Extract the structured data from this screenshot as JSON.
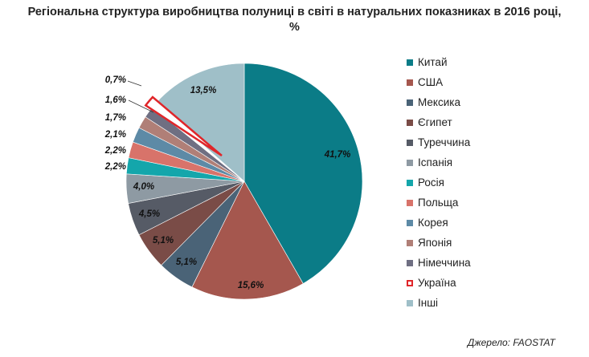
{
  "chart_data": {
    "type": "pie",
    "title_line1": "Регіональна структура виробництва полуниці в світі в натуральних показниках в 2016 році,",
    "title_line2": "%",
    "categories": [
      "Китай",
      "США",
      "Мексика",
      "Єгипет",
      "Туреччина",
      "Іспанія",
      "Росія",
      "Польща",
      "Корея",
      "Японія",
      "Німеччина",
      "Україна",
      "Інші"
    ],
    "values": [
      41.7,
      15.6,
      5.1,
      5.1,
      4.5,
      4.0,
      2.2,
      2.2,
      2.1,
      1.7,
      1.6,
      0.7,
      13.5
    ],
    "labels": [
      "41,7%",
      "15,6%",
      "5,1%",
      "5,1%",
      "4,5%",
      "4,0%",
      "2,2%",
      "2,2%",
      "2,1%",
      "1,7%",
      "1,6%",
      "0,7%",
      "13,5%"
    ],
    "colors": [
      "#0b7c87",
      "#a5574e",
      "#4a6377",
      "#7a4c47",
      "#565b66",
      "#8e9aa3",
      "#14a6ab",
      "#d8736a",
      "#5d8aa6",
      "#b07f77",
      "#6f6f82",
      "#ffffff",
      "#9fbfc8"
    ],
    "highlight": "Україна",
    "highlight_color": "#e0262a",
    "legend_position": "right"
  },
  "source": "Джерело: FAOSTAT"
}
